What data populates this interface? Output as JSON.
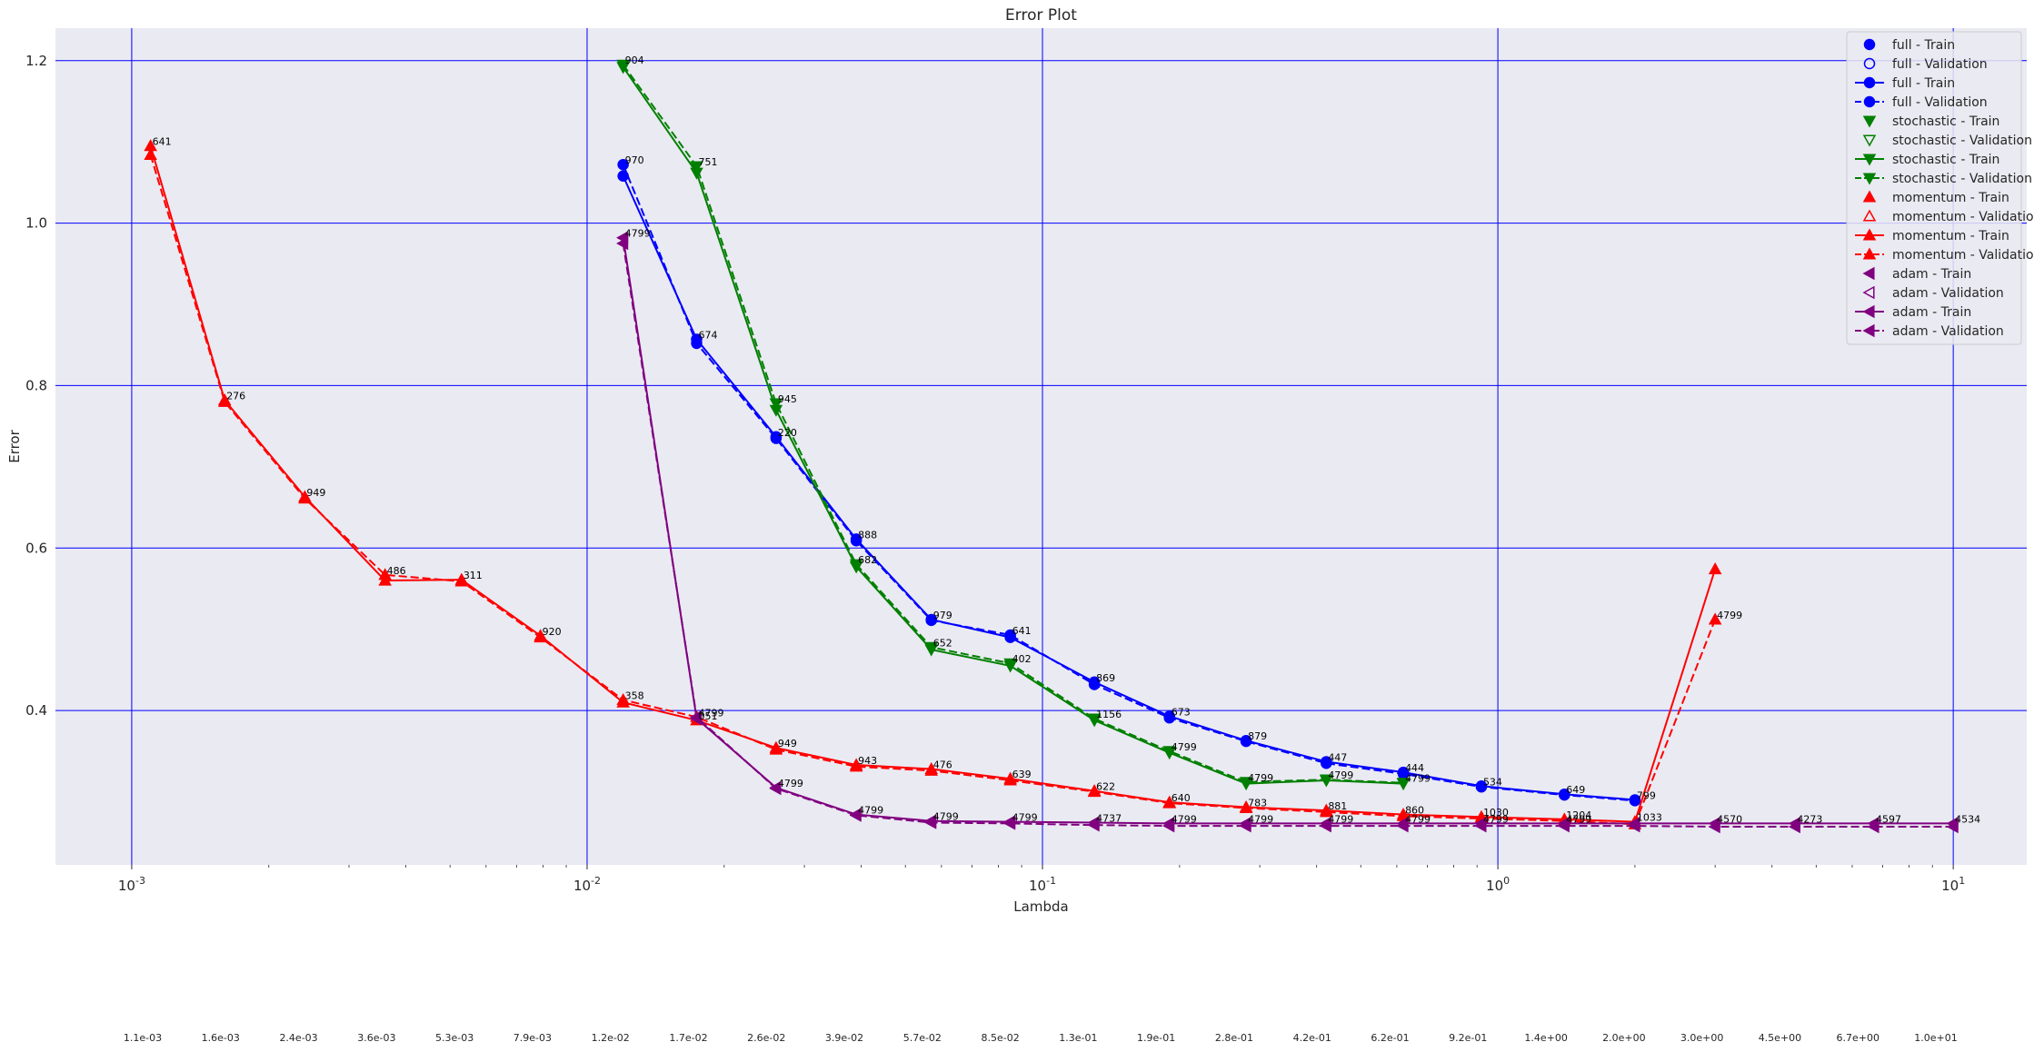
{
  "chart_data": {
    "type": "line",
    "title": "Error Plot",
    "xlabel": "Lambda",
    "ylabel": "Error",
    "xscale": "log",
    "xlim": [
      0.00068,
      14.5
    ],
    "ylim": [
      0.21,
      1.24
    ],
    "grid": true,
    "legend_position": "top-right",
    "x_tick_labels": [
      "10^-3",
      "10^-2",
      "10^-1",
      "10^0",
      "10^1"
    ],
    "y_tick_labels": [
      "0.4",
      "0.6",
      "0.8",
      "1.0",
      "1.2"
    ],
    "y_ticks": [
      0.4,
      0.6,
      0.8,
      1.0,
      1.2
    ],
    "lambda_tick_labels": [
      "1.1e-03",
      "1.6e-03",
      "2.4e-03",
      "3.6e-03",
      "5.3e-03",
      "7.9e-03",
      "1.2e-02",
      "1.7e-02",
      "2.6e-02",
      "3.9e-02",
      "5.7e-02",
      "8.5e-02",
      "1.3e-01",
      "1.9e-01",
      "2.8e-01",
      "4.2e-01",
      "6.2e-01",
      "9.2e-01",
      "1.4e+00",
      "2.0e+00",
      "3.0e+00",
      "4.5e+00",
      "6.7e+00",
      "1.0e+01"
    ],
    "series": [
      {
        "name": "full - Train",
        "color": "#0000ff",
        "marker": "circle",
        "linestyle": "solid",
        "x": [
          0.012,
          0.0174,
          0.026,
          0.039,
          0.057,
          0.085,
          0.13,
          0.19,
          0.28,
          0.42,
          0.62,
          0.92,
          1.4,
          2.0
        ],
        "values": [
          1.058,
          0.857,
          0.737,
          0.611,
          0.512,
          0.49,
          0.435,
          0.393,
          0.363,
          0.337,
          0.324,
          0.307,
          0.297,
          0.29
        ]
      },
      {
        "name": "full - Validation",
        "color": "#0000ff",
        "marker": "circle",
        "linestyle": "dashed",
        "x": [
          0.012,
          0.0174,
          0.026,
          0.039,
          0.057,
          0.085,
          0.13,
          0.19,
          0.28,
          0.42,
          0.62,
          0.92,
          1.4,
          2.0
        ],
        "values": [
          1.072,
          0.852,
          0.735,
          0.609,
          0.511,
          0.493,
          0.432,
          0.391,
          0.362,
          0.335,
          0.322,
          0.306,
          0.296,
          0.289
        ]
      },
      {
        "name": "stochastic - Train",
        "color": "#008000",
        "marker": "triangle-down",
        "linestyle": "solid",
        "x": [
          0.012,
          0.0174,
          0.026,
          0.039,
          0.057,
          0.085,
          0.13,
          0.19,
          0.28,
          0.42,
          0.62
        ],
        "values": [
          1.192,
          1.062,
          0.77,
          0.577,
          0.475,
          0.455,
          0.388,
          0.348,
          0.31,
          0.314,
          0.31
        ]
      },
      {
        "name": "stochastic - Validation",
        "color": "#008000",
        "marker": "triangle-down",
        "linestyle": "dashed",
        "x": [
          0.012,
          0.0174,
          0.026,
          0.039,
          0.057,
          0.085,
          0.13,
          0.19,
          0.28,
          0.42,
          0.62
        ],
        "values": [
          1.195,
          1.07,
          0.778,
          0.58,
          0.478,
          0.458,
          0.39,
          0.35,
          0.312,
          0.315,
          0.311
        ]
      },
      {
        "name": "momentum - Train",
        "color": "#ff0000",
        "marker": "triangle-up",
        "linestyle": "solid",
        "x": [
          0.0011,
          0.0016,
          0.0024,
          0.0036,
          0.0053,
          0.0079,
          0.012,
          0.0174,
          0.026,
          0.039,
          0.057,
          0.085,
          0.13,
          0.19,
          0.28,
          0.42,
          0.62,
          0.92,
          1.4,
          2.0,
          3.0
        ],
        "values": [
          1.095,
          0.782,
          0.663,
          0.56,
          0.561,
          0.492,
          0.41,
          0.388,
          0.354,
          0.333,
          0.328,
          0.316,
          0.301,
          0.287,
          0.281,
          0.277,
          0.272,
          0.269,
          0.266,
          0.263,
          0.574
        ]
      },
      {
        "name": "momentum - Validation",
        "color": "#ff0000",
        "marker": "triangle-up",
        "linestyle": "dashed",
        "x": [
          0.0011,
          0.0016,
          0.0024,
          0.0036,
          0.0053,
          0.0079,
          0.012,
          0.0174,
          0.026,
          0.039,
          0.057,
          0.085,
          0.13,
          0.19,
          0.28,
          0.42,
          0.62,
          0.92,
          1.4,
          2.0,
          3.0
        ],
        "values": [
          1.084,
          0.78,
          0.661,
          0.567,
          0.559,
          0.49,
          0.413,
          0.392,
          0.352,
          0.331,
          0.326,
          0.314,
          0.3,
          0.286,
          0.28,
          0.275,
          0.27,
          0.267,
          0.264,
          0.26,
          0.512
        ]
      },
      {
        "name": "adam - Train",
        "color": "#800080",
        "marker": "triangle-left",
        "linestyle": "solid",
        "x": [
          0.012,
          0.0174,
          0.026,
          0.039,
          0.057,
          0.085,
          0.13,
          0.19,
          0.28,
          0.42,
          0.62,
          0.92,
          1.4,
          2.0,
          3.0,
          4.5,
          6.7,
          10.0
        ],
        "values": [
          0.982,
          0.39,
          0.305,
          0.272,
          0.264,
          0.263,
          0.262,
          0.261,
          0.261,
          0.261,
          0.261,
          0.261,
          0.261,
          0.261,
          0.261,
          0.261,
          0.261,
          0.261
        ]
      },
      {
        "name": "adam - Validation",
        "color": "#800080",
        "marker": "triangle-left",
        "linestyle": "dashed",
        "x": [
          0.012,
          0.0174,
          0.026,
          0.039,
          0.057,
          0.085,
          0.13,
          0.19,
          0.28,
          0.42,
          0.62,
          0.92,
          1.4,
          2.0,
          3.0,
          4.5,
          6.7,
          10.0
        ],
        "values": [
          0.975,
          0.392,
          0.304,
          0.271,
          0.262,
          0.261,
          0.259,
          0.258,
          0.258,
          0.258,
          0.258,
          0.258,
          0.258,
          0.258,
          0.257,
          0.257,
          0.257,
          0.257
        ]
      }
    ],
    "annotations": [
      {
        "text": "641",
        "x": 0.0011,
        "y": 1.095
      },
      {
        "text": "276",
        "x": 0.0016,
        "y": 0.782
      },
      {
        "text": "949",
        "x": 0.0024,
        "y": 0.663
      },
      {
        "text": "486",
        "x": 0.0036,
        "y": 0.567
      },
      {
        "text": "311",
        "x": 0.0053,
        "y": 0.561
      },
      {
        "text": "920",
        "x": 0.0079,
        "y": 0.492
      },
      {
        "text": "358",
        "x": 0.012,
        "y": 0.413
      },
      {
        "text": "904",
        "x": 0.012,
        "y": 1.195
      },
      {
        "text": "970",
        "x": 0.012,
        "y": 1.072
      },
      {
        "text": "4799",
        "x": 0.012,
        "y": 0.982
      },
      {
        "text": "751",
        "x": 0.0174,
        "y": 1.07
      },
      {
        "text": "674",
        "x": 0.0174,
        "y": 0.857
      },
      {
        "text": "4799",
        "x": 0.0174,
        "y": 0.392
      },
      {
        "text": "051",
        "x": 0.0174,
        "y": 0.388
      },
      {
        "text": "945",
        "x": 0.026,
        "y": 0.778
      },
      {
        "text": "220",
        "x": 0.026,
        "y": 0.737
      },
      {
        "text": "949",
        "x": 0.026,
        "y": 0.354
      },
      {
        "text": "4799",
        "x": 0.026,
        "y": 0.305
      },
      {
        "text": "888",
        "x": 0.039,
        "y": 0.611
      },
      {
        "text": "682",
        "x": 0.039,
        "y": 0.58
      },
      {
        "text": "943",
        "x": 0.039,
        "y": 0.333
      },
      {
        "text": "4799",
        "x": 0.039,
        "y": 0.272
      },
      {
        "text": "979",
        "x": 0.057,
        "y": 0.512
      },
      {
        "text": "652",
        "x": 0.057,
        "y": 0.478
      },
      {
        "text": "476",
        "x": 0.057,
        "y": 0.328
      },
      {
        "text": "4799",
        "x": 0.057,
        "y": 0.264
      },
      {
        "text": "641",
        "x": 0.085,
        "y": 0.493
      },
      {
        "text": "402",
        "x": 0.085,
        "y": 0.458
      },
      {
        "text": "639",
        "x": 0.085,
        "y": 0.316
      },
      {
        "text": "4799",
        "x": 0.085,
        "y": 0.263
      },
      {
        "text": "869",
        "x": 0.13,
        "y": 0.435
      },
      {
        "text": "1156",
        "x": 0.13,
        "y": 0.39
      },
      {
        "text": "622",
        "x": 0.13,
        "y": 0.301
      },
      {
        "text": "4737",
        "x": 0.13,
        "y": 0.262
      },
      {
        "text": "673",
        "x": 0.19,
        "y": 0.393
      },
      {
        "text": "4799",
        "x": 0.19,
        "y": 0.35
      },
      {
        "text": "640",
        "x": 0.19,
        "y": 0.287
      },
      {
        "text": "4799",
        "x": 0.19,
        "y": 0.261
      },
      {
        "text": "879",
        "x": 0.28,
        "y": 0.363
      },
      {
        "text": "4799",
        "x": 0.28,
        "y": 0.312
      },
      {
        "text": "783",
        "x": 0.28,
        "y": 0.281
      },
      {
        "text": "4799",
        "x": 0.28,
        "y": 0.261
      },
      {
        "text": "447",
        "x": 0.42,
        "y": 0.337
      },
      {
        "text": "4799",
        "x": 0.42,
        "y": 0.315
      },
      {
        "text": "881",
        "x": 0.42,
        "y": 0.277
      },
      {
        "text": "4799",
        "x": 0.42,
        "y": 0.261
      },
      {
        "text": "444",
        "x": 0.62,
        "y": 0.324
      },
      {
        "text": "4799",
        "x": 0.62,
        "y": 0.311
      },
      {
        "text": "860",
        "x": 0.62,
        "y": 0.272
      },
      {
        "text": "4799",
        "x": 0.62,
        "y": 0.261
      },
      {
        "text": "534",
        "x": 0.92,
        "y": 0.307
      },
      {
        "text": "1030",
        "x": 0.92,
        "y": 0.269
      },
      {
        "text": "4799",
        "x": 0.92,
        "y": 0.261
      },
      {
        "text": "649",
        "x": 1.4,
        "y": 0.297
      },
      {
        "text": "1204",
        "x": 1.4,
        "y": 0.266
      },
      {
        "text": "4799",
        "x": 1.4,
        "y": 0.261
      },
      {
        "text": "799",
        "x": 2.0,
        "y": 0.29
      },
      {
        "text": "1033",
        "x": 2.0,
        "y": 0.263
      },
      {
        "text": "4799",
        "x": 3.0,
        "y": 0.512
      },
      {
        "text": "4570",
        "x": 3.0,
        "y": 0.261
      },
      {
        "text": "4273",
        "x": 4.5,
        "y": 0.261
      },
      {
        "text": "4597",
        "x": 6.7,
        "y": 0.261
      },
      {
        "text": "4534",
        "x": 10.0,
        "y": 0.261
      }
    ]
  }
}
